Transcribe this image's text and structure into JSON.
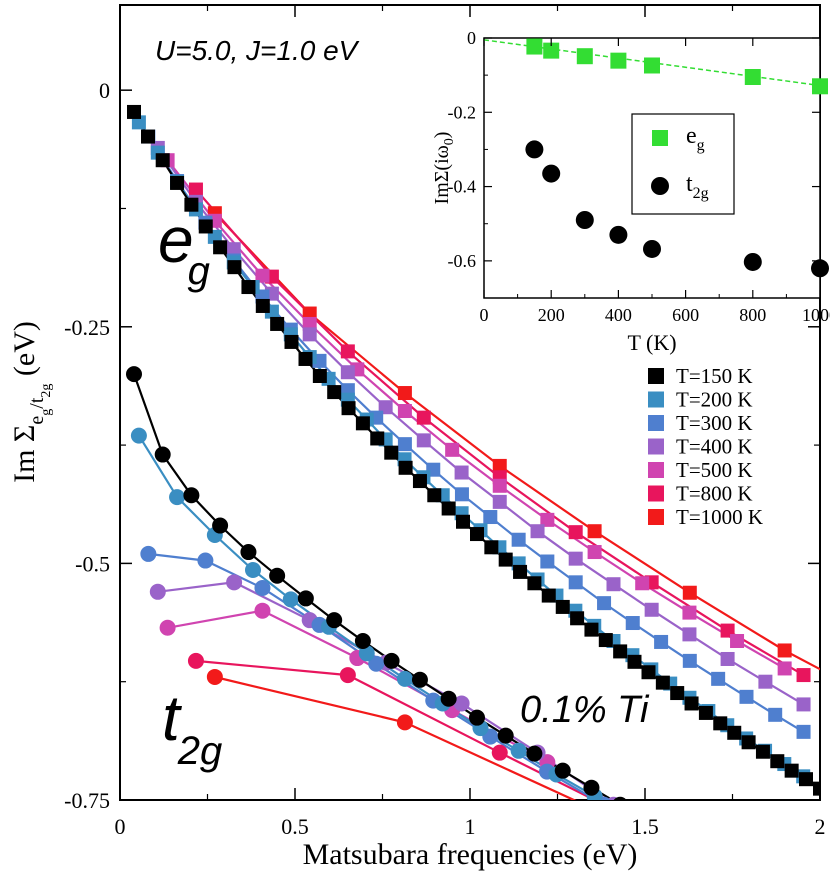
{
  "chart_data": [
    {
      "type": "line",
      "xlabel": "Matsubara frequencies (eV)",
      "ylabel_main": "Im Σ",
      "ylabel_sub1": "e",
      "ylabel_sub2": "g",
      "ylabel_sub3": "/t",
      "ylabel_sub4": "2g",
      "ylabel_unit": " (eV)",
      "xlim": [
        0,
        2
      ],
      "ylim": [
        -0.75,
        0.09
      ],
      "xticks": [
        0,
        0.5,
        1,
        1.5,
        2
      ],
      "xtick_labels": [
        "0",
        "0.5",
        "1",
        "1.5",
        "2"
      ],
      "yticks": [
        0,
        -0.25,
        -0.5,
        -0.75
      ],
      "ytick_labels": [
        "0",
        "-0.25",
        "-0.5",
        "-0.75"
      ],
      "annotations": {
        "params": "U=5.0, J=1.0 eV",
        "eg_main": "e",
        "eg_sub": "g",
        "t2g_main": "t",
        "t2g_sub": "2g",
        "doping": "0.1% Ti"
      },
      "legend": "right-middle",
      "series": [
        {
          "name": "T=150 K",
          "color": "#000000",
          "eg": [
            [
              0.04,
              -0.023
            ],
            [
              0.08,
              -0.049
            ],
            [
              0.122,
              -0.074
            ],
            [
              0.163,
              -0.098
            ],
            [
              0.204,
              -0.121
            ],
            [
              0.245,
              -0.144
            ],
            [
              0.286,
              -0.166
            ],
            [
              0.327,
              -0.187
            ],
            [
              0.367,
              -0.208
            ],
            [
              0.408,
              -0.228
            ],
            [
              0.449,
              -0.247
            ],
            [
              0.49,
              -0.266
            ],
            [
              0.53,
              -0.284
            ],
            [
              0.571,
              -0.302
            ],
            [
              0.612,
              -0.319
            ],
            [
              0.653,
              -0.336
            ],
            [
              0.694,
              -0.352
            ],
            [
              0.735,
              -0.368
            ],
            [
              0.775,
              -0.383
            ],
            [
              0.816,
              -0.399
            ],
            [
              0.857,
              -0.413
            ],
            [
              0.898,
              -0.428
            ],
            [
              0.939,
              -0.442
            ],
            [
              0.98,
              -0.456
            ],
            [
              1.02,
              -0.469
            ],
            [
              1.061,
              -0.483
            ],
            [
              1.102,
              -0.496
            ],
            [
              1.143,
              -0.509
            ],
            [
              1.184,
              -0.521
            ],
            [
              1.225,
              -0.534
            ],
            [
              1.265,
              -0.546
            ],
            [
              1.306,
              -0.558
            ],
            [
              1.347,
              -0.57
            ],
            [
              1.388,
              -0.581
            ],
            [
              1.429,
              -0.593
            ],
            [
              1.47,
              -0.604
            ],
            [
              1.51,
              -0.615
            ],
            [
              1.551,
              -0.626
            ],
            [
              1.592,
              -0.637
            ],
            [
              1.633,
              -0.648
            ],
            [
              1.674,
              -0.658
            ],
            [
              1.715,
              -0.669
            ],
            [
              1.755,
              -0.679
            ],
            [
              1.796,
              -0.689
            ],
            [
              1.837,
              -0.699
            ],
            [
              1.878,
              -0.709
            ],
            [
              1.919,
              -0.719
            ],
            [
              1.96,
              -0.728
            ],
            [
              2.0,
              -0.738
            ]
          ],
          "t2g": [
            [
              0.04,
              -0.3
            ],
            [
              0.122,
              -0.385
            ],
            [
              0.204,
              -0.428
            ],
            [
              0.286,
              -0.46
            ],
            [
              0.367,
              -0.488
            ],
            [
              0.449,
              -0.513
            ],
            [
              0.531,
              -0.537
            ],
            [
              0.612,
              -0.56
            ],
            [
              0.694,
              -0.582
            ],
            [
              0.776,
              -0.603
            ],
            [
              0.857,
              -0.623
            ],
            [
              0.939,
              -0.643
            ],
            [
              1.02,
              -0.663
            ],
            [
              1.102,
              -0.682
            ],
            [
              1.184,
              -0.701
            ],
            [
              1.265,
              -0.719
            ],
            [
              1.347,
              -0.737
            ],
            [
              1.429,
              -0.755
            ]
          ]
        },
        {
          "name": "T=200 K",
          "color": "#3a8ec2",
          "eg": [
            [
              0.054,
              -0.034
            ],
            [
              0.108,
              -0.066
            ],
            [
              0.163,
              -0.097
            ],
            [
              0.217,
              -0.126
            ],
            [
              0.271,
              -0.155
            ],
            [
              0.325,
              -0.182
            ],
            [
              0.379,
              -0.208
            ],
            [
              0.434,
              -0.234
            ],
            [
              0.488,
              -0.258
            ],
            [
              0.542,
              -0.282
            ],
            [
              0.596,
              -0.305
            ],
            [
              0.651,
              -0.327
            ],
            [
              0.705,
              -0.348
            ],
            [
              0.759,
              -0.369
            ],
            [
              0.813,
              -0.39
            ],
            [
              0.867,
              -0.409
            ],
            [
              0.922,
              -0.428
            ],
            [
              0.976,
              -0.447
            ],
            [
              1.03,
              -0.465
            ],
            [
              1.084,
              -0.483
            ],
            [
              1.139,
              -0.5
            ],
            [
              1.193,
              -0.517
            ],
            [
              1.247,
              -0.534
            ],
            [
              1.301,
              -0.55
            ],
            [
              1.355,
              -0.566
            ],
            [
              1.41,
              -0.582
            ],
            [
              1.464,
              -0.597
            ],
            [
              1.518,
              -0.612
            ],
            [
              1.572,
              -0.627
            ],
            [
              1.627,
              -0.642
            ],
            [
              1.681,
              -0.656
            ],
            [
              1.735,
              -0.671
            ],
            [
              1.789,
              -0.685
            ],
            [
              1.843,
              -0.698
            ],
            [
              1.898,
              -0.712
            ],
            [
              1.952,
              -0.725
            ]
          ],
          "t2g": [
            [
              0.054,
              -0.365
            ],
            [
              0.163,
              -0.43
            ],
            [
              0.271,
              -0.47
            ],
            [
              0.38,
              -0.507
            ],
            [
              0.488,
              -0.538
            ],
            [
              0.597,
              -0.567
            ],
            [
              0.705,
              -0.595
            ],
            [
              0.814,
              -0.622
            ],
            [
              0.922,
              -0.648
            ],
            [
              1.03,
              -0.674
            ],
            [
              1.139,
              -0.698
            ],
            [
              1.247,
              -0.723
            ],
            [
              1.356,
              -0.746
            ]
          ]
        },
        {
          "name": "T=300 K",
          "color": "#4f7fcf",
          "eg": [
            [
              0.081,
              -0.049
            ],
            [
              0.163,
              -0.096
            ],
            [
              0.244,
              -0.14
            ],
            [
              0.326,
              -0.18
            ],
            [
              0.407,
              -0.218
            ],
            [
              0.488,
              -0.253
            ],
            [
              0.57,
              -0.286
            ],
            [
              0.651,
              -0.317
            ],
            [
              0.732,
              -0.346
            ],
            [
              0.814,
              -0.374
            ],
            [
              0.895,
              -0.401
            ],
            [
              0.977,
              -0.427
            ],
            [
              1.058,
              -0.451
            ],
            [
              1.139,
              -0.475
            ],
            [
              1.221,
              -0.498
            ],
            [
              1.302,
              -0.52
            ],
            [
              1.383,
              -0.542
            ],
            [
              1.465,
              -0.563
            ],
            [
              1.546,
              -0.583
            ],
            [
              1.628,
              -0.603
            ],
            [
              1.709,
              -0.622
            ],
            [
              1.79,
              -0.641
            ],
            [
              1.872,
              -0.66
            ],
            [
              1.953,
              -0.678
            ]
          ],
          "t2g": [
            [
              0.081,
              -0.49
            ],
            [
              0.244,
              -0.497
            ],
            [
              0.407,
              -0.526
            ],
            [
              0.57,
              -0.565
            ],
            [
              0.732,
              -0.606
            ],
            [
              0.895,
              -0.645
            ],
            [
              1.058,
              -0.683
            ],
            [
              1.22,
              -0.72
            ],
            [
              1.383,
              -0.755
            ]
          ]
        },
        {
          "name": "T=400 K",
          "color": "#9a63c9",
          "eg": [
            [
              0.108,
              -0.061
            ],
            [
              0.217,
              -0.118
            ],
            [
              0.325,
              -0.168
            ],
            [
              0.434,
              -0.215
            ],
            [
              0.542,
              -0.258
            ],
            [
              0.651,
              -0.298
            ],
            [
              0.759,
              -0.335
            ],
            [
              0.868,
              -0.37
            ],
            [
              0.976,
              -0.404
            ],
            [
              1.085,
              -0.435
            ],
            [
              1.193,
              -0.466
            ],
            [
              1.302,
              -0.495
            ],
            [
              1.41,
              -0.522
            ],
            [
              1.519,
              -0.549
            ],
            [
              1.627,
              -0.575
            ],
            [
              1.736,
              -0.601
            ],
            [
              1.844,
              -0.625
            ],
            [
              1.953,
              -0.649
            ]
          ],
          "t2g": [
            [
              0.108,
              -0.53
            ],
            [
              0.326,
              -0.52
            ],
            [
              0.542,
              -0.56
            ],
            [
              0.76,
              -0.605
            ],
            [
              0.976,
              -0.648
            ],
            [
              1.193,
              -0.7
            ],
            [
              1.41,
              -0.755
            ]
          ]
        },
        {
          "name": "T=500 K",
          "color": "#d044b0",
          "eg": [
            [
              0.136,
              -0.074
            ],
            [
              0.271,
              -0.138
            ],
            [
              0.407,
              -0.196
            ],
            [
              0.542,
              -0.247
            ],
            [
              0.678,
              -0.295
            ],
            [
              0.814,
              -0.339
            ],
            [
              0.949,
              -0.38
            ],
            [
              1.085,
              -0.418
            ],
            [
              1.221,
              -0.454
            ],
            [
              1.356,
              -0.488
            ],
            [
              1.492,
              -0.521
            ],
            [
              1.627,
              -0.552
            ],
            [
              1.763,
              -0.582
            ],
            [
              1.899,
              -0.611
            ]
          ],
          "t2g": [
            [
              0.136,
              -0.568
            ],
            [
              0.407,
              -0.55
            ],
            [
              0.678,
              -0.6
            ],
            [
              0.949,
              -0.655
            ],
            [
              1.221,
              -0.71
            ]
          ]
        },
        {
          "name": "T=800 K",
          "color": "#e8155d",
          "eg": [
            [
              0.217,
              -0.105
            ],
            [
              0.434,
              -0.197
            ],
            [
              0.651,
              -0.276
            ],
            [
              0.868,
              -0.346
            ],
            [
              1.085,
              -0.409
            ],
            [
              1.302,
              -0.467
            ],
            [
              1.519,
              -0.52
            ],
            [
              1.736,
              -0.571
            ],
            [
              1.953,
              -0.618
            ]
          ],
          "t2g": [
            [
              0.217,
              -0.603
            ],
            [
              0.651,
              -0.618
            ],
            [
              1.085,
              -0.7
            ],
            [
              1.519,
              -0.78
            ]
          ]
        },
        {
          "name": "T=1000 K",
          "color": "#f21a1a",
          "eg": [
            [
              0.271,
              -0.13
            ],
            [
              0.542,
              -0.236
            ],
            [
              0.814,
              -0.32
            ],
            [
              1.085,
              -0.397
            ],
            [
              1.356,
              -0.466
            ],
            [
              1.628,
              -0.531
            ],
            [
              1.899,
              -0.592
            ],
            [
              2.17,
              -0.645
            ]
          ],
          "t2g": [
            [
              0.271,
              -0.62
            ],
            [
              0.814,
              -0.668
            ],
            [
              1.356,
              -0.76
            ]
          ]
        }
      ]
    },
    {
      "type": "scatter",
      "xlabel": "T (K)",
      "ylabel_main": "ImΣ(iω",
      "ylabel_sub": "0",
      "ylabel_close": ")",
      "xlim": [
        0,
        1000
      ],
      "ylim": [
        -0.7,
        0.0
      ],
      "xticks": [
        0,
        200,
        400,
        600,
        800,
        1000
      ],
      "xtick_labels": [
        "0",
        "200",
        "400",
        "600",
        "800",
        "1000"
      ],
      "yticks": [
        0,
        -0.2,
        -0.4,
        -0.6
      ],
      "ytick_labels": [
        "0",
        "-0.2",
        "-0.4",
        "-0.6"
      ],
      "legend": "right-middle",
      "series": [
        {
          "name_main": "e",
          "name_sub": "g",
          "color": "#33dd33",
          "marker": "square",
          "x": [
            150,
            200,
            300,
            400,
            500,
            800,
            1000
          ],
          "y": [
            -0.023,
            -0.034,
            -0.049,
            -0.061,
            -0.074,
            -0.105,
            -0.13
          ]
        },
        {
          "name_main": "t",
          "name_sub": "2g",
          "color": "#000000",
          "marker": "circle",
          "x": [
            150,
            200,
            300,
            400,
            500,
            800,
            1000
          ],
          "y": [
            -0.3,
            -0.365,
            -0.49,
            -0.53,
            -0.568,
            -0.603,
            -0.62
          ]
        }
      ],
      "fit_line": {
        "color": "#33dd33",
        "dashed": true,
        "x": [
          0,
          1000
        ],
        "y": [
          -0.005,
          -0.128
        ]
      }
    }
  ]
}
